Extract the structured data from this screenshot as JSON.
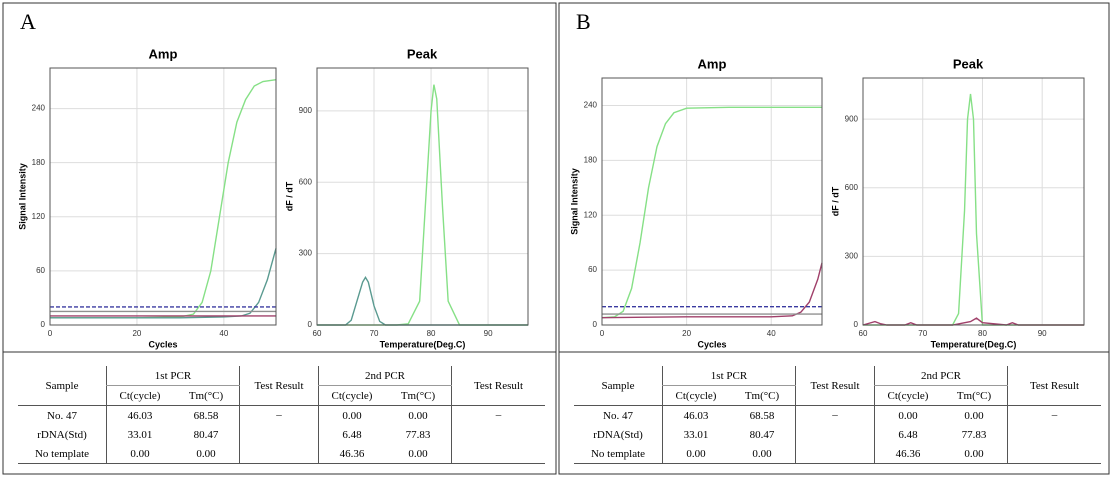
{
  "chart_data": [
    {
      "type": "line",
      "title": "Amp",
      "x_label": "Cycles",
      "y_label": "Signal Intensity",
      "xlim": [
        0,
        52
      ],
      "xticks": [
        0,
        20,
        40
      ],
      "ylim": [
        0,
        285
      ],
      "yticks": [
        0,
        60,
        120,
        180,
        240
      ],
      "grid": true,
      "series": [
        {
          "color": "#86e086",
          "x": [
            0,
            10,
            20,
            30,
            33,
            35,
            37,
            39,
            41,
            43,
            45,
            47,
            49,
            52
          ],
          "values": [
            8,
            8,
            8,
            9,
            12,
            25,
            60,
            120,
            180,
            225,
            250,
            265,
            270,
            272
          ]
        },
        {
          "color": "#5a9a90",
          "x": [
            0,
            10,
            20,
            30,
            40,
            44,
            46,
            48,
            50,
            52
          ],
          "values": [
            8,
            8,
            8,
            8,
            9,
            10,
            13,
            25,
            50,
            85
          ]
        },
        {
          "color": "#a0406a",
          "x": [
            0,
            52
          ],
          "values": [
            10,
            10
          ]
        },
        {
          "color": "#909090",
          "x": [
            0,
            52
          ],
          "values": [
            15,
            15
          ]
        },
        {
          "color": "#3a3aa0",
          "dashed": true,
          "x": [
            0,
            52
          ],
          "values": [
            20,
            20
          ]
        }
      ]
    },
    {
      "type": "line",
      "title": "Peak",
      "x_label": "Temperature(Deg.C)",
      "y_label": "dF / dT",
      "xlim": [
        60,
        97
      ],
      "xticks": [
        60,
        70,
        80,
        90
      ],
      "ylim": [
        0,
        1080
      ],
      "yticks": [
        0,
        300,
        600,
        900
      ],
      "grid": true,
      "series": [
        {
          "color": "#86e086",
          "x": [
            60,
            74,
            76,
            78,
            79,
            80,
            80.5,
            81,
            82,
            83,
            85,
            97
          ],
          "values": [
            0,
            0,
            5,
            100,
            500,
            900,
            1010,
            950,
            500,
            100,
            0,
            0
          ]
        },
        {
          "color": "#5a9a90",
          "x": [
            60,
            65,
            66,
            67,
            68,
            68.5,
            69,
            70,
            71,
            72,
            97
          ],
          "values": [
            0,
            0,
            20,
            100,
            180,
            200,
            180,
            80,
            15,
            0,
            0
          ]
        }
      ]
    },
    {
      "type": "line",
      "title": "Amp",
      "x_label": "Cycles",
      "y_label": "Signal Intensity",
      "xlim": [
        0,
        52
      ],
      "xticks": [
        0,
        20,
        40
      ],
      "ylim": [
        0,
        270
      ],
      "yticks": [
        0,
        60,
        120,
        180,
        240
      ],
      "grid": true,
      "series": [
        {
          "color": "#86e086",
          "x": [
            0,
            3,
            5,
            7,
            9,
            11,
            13,
            15,
            17,
            20,
            30,
            40,
            52
          ],
          "values": [
            8,
            9,
            15,
            40,
            90,
            150,
            195,
            220,
            232,
            237,
            238,
            238,
            238
          ]
        },
        {
          "color": "#a0406a",
          "x": [
            0,
            20,
            40,
            45,
            47,
            49,
            51,
            52
          ],
          "values": [
            8,
            9,
            9,
            10,
            14,
            25,
            50,
            68
          ]
        },
        {
          "color": "#909090",
          "x": [
            0,
            52
          ],
          "values": [
            12,
            12
          ]
        },
        {
          "color": "#3a3aa0",
          "dashed": true,
          "x": [
            0,
            52
          ],
          "values": [
            20,
            20
          ]
        }
      ]
    },
    {
      "type": "line",
      "title": "Peak",
      "x_label": "Temperature(Deg.C)",
      "y_label": "dF / dT",
      "xlim": [
        60,
        97
      ],
      "xticks": [
        60,
        70,
        80,
        90
      ],
      "ylim": [
        0,
        1080
      ],
      "yticks": [
        0,
        300,
        600,
        900
      ],
      "grid": true,
      "series": [
        {
          "color": "#86e086",
          "x": [
            60,
            75,
            76,
            77,
            77.5,
            78,
            78.5,
            79,
            80,
            97
          ],
          "values": [
            0,
            0,
            50,
            500,
            900,
            1010,
            900,
            400,
            0,
            0
          ]
        },
        {
          "color": "#a0406a",
          "x": [
            60,
            62,
            63,
            64,
            67,
            68,
            69,
            75,
            78,
            79,
            80,
            84,
            85,
            86,
            97
          ],
          "values": [
            0,
            15,
            5,
            0,
            0,
            10,
            0,
            0,
            15,
            30,
            10,
            0,
            10,
            0,
            0
          ]
        }
      ]
    }
  ],
  "panels": [
    {
      "label": "A",
      "table": {
        "header": [
          "Sample",
          "1st PCR",
          "Test Result",
          "2nd PCR",
          "Test Result"
        ],
        "subheader": [
          "Ct(cycle)",
          "Tm(°C)",
          "Ct(cycle)",
          "Tm(°C)"
        ],
        "rows": [
          [
            "No. 47",
            "46.03",
            "68.58",
            "0.00",
            "0.00"
          ],
          [
            "rDNA(Std)",
            "33.01",
            "80.47",
            "6.48",
            "77.83"
          ],
          [
            "No template",
            "0.00",
            "0.00",
            "46.36",
            "0.00"
          ]
        ],
        "results": [
          "–",
          "–"
        ]
      }
    },
    {
      "label": "B",
      "table": {
        "header": [
          "Sample",
          "1st PCR",
          "Test Result",
          "2nd PCR",
          "Test Result"
        ],
        "subheader": [
          "Ct(cycle)",
          "Tm(°C)",
          "Ct(cycle)",
          "Tm(°C)"
        ],
        "rows": [
          [
            "No. 47",
            "46.03",
            "68.58",
            "0.00",
            "0.00"
          ],
          [
            "rDNA(Std)",
            "33.01",
            "80.47",
            "6.48",
            "77.83"
          ],
          [
            "No template",
            "0.00",
            "0.00",
            "46.36",
            "0.00"
          ]
        ],
        "results": [
          "–",
          "–"
        ]
      }
    }
  ]
}
